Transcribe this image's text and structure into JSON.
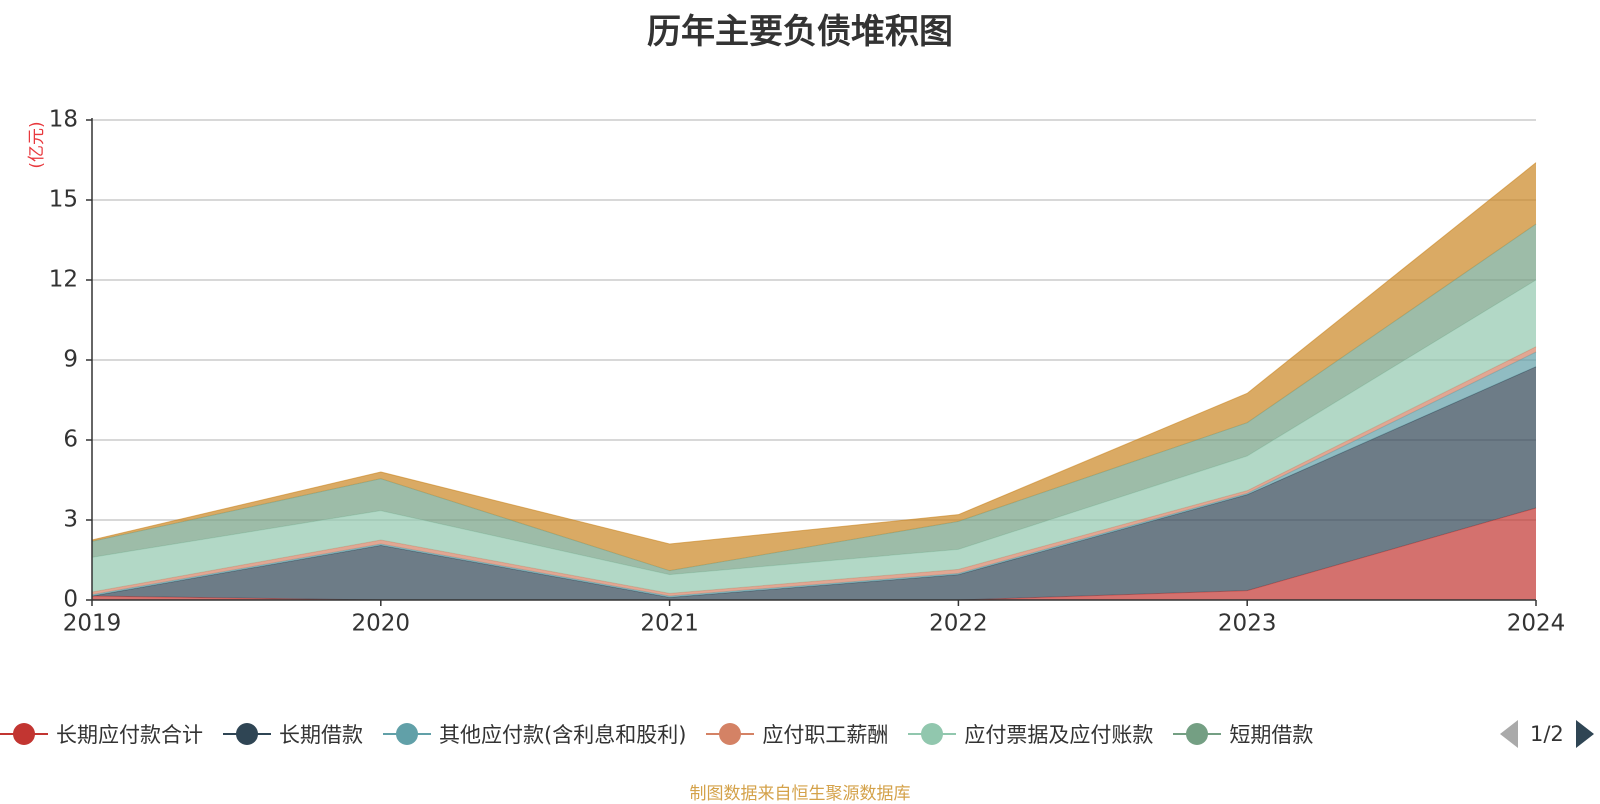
{
  "chart_data": {
    "type": "area",
    "stacked": true,
    "title": "历年主要负债堆积图",
    "ylabel": "(亿元)",
    "ylabel_color": "#e8383d",
    "categories": [
      "2019",
      "2020",
      "2021",
      "2022",
      "2023",
      "2024"
    ],
    "ylim": [
      0,
      18
    ],
    "yticks": [
      "0",
      "3",
      "6",
      "9",
      "12",
      "15",
      "18"
    ],
    "grid": true,
    "legend_position": "bottom",
    "series": [
      {
        "name": "长期应付款合计",
        "color": "#c23531",
        "values": [
          0.15,
          0.0,
          0.0,
          0.0,
          0.35,
          3.45
        ]
      },
      {
        "name": "长期借款",
        "color": "#2f4554",
        "values": [
          0.0,
          2.05,
          0.1,
          0.95,
          3.6,
          5.3
        ]
      },
      {
        "name": "其他应付款(含利息和股利)",
        "color": "#61a0a8",
        "values": [
          0.05,
          0.05,
          0.05,
          0.05,
          0.05,
          0.55
        ]
      },
      {
        "name": "应付职工薪酬",
        "color": "#d48265",
        "values": [
          0.1,
          0.15,
          0.1,
          0.15,
          0.1,
          0.2
        ]
      },
      {
        "name": "应付票据及应付账款",
        "color": "#91c7ae",
        "values": [
          1.3,
          1.1,
          0.7,
          0.75,
          1.3,
          2.5
        ]
      },
      {
        "name": "短期借款",
        "color": "#749f83",
        "values": [
          0.6,
          1.2,
          0.15,
          1.05,
          1.25,
          2.1
        ]
      },
      {
        "name": "",
        "color": "#ca8622",
        "values": [
          0.05,
          0.25,
          1.0,
          0.25,
          1.1,
          2.3
        ]
      }
    ]
  },
  "legend": {
    "page": "1/2"
  },
  "source": "制图数据来自恒生聚源数据库"
}
